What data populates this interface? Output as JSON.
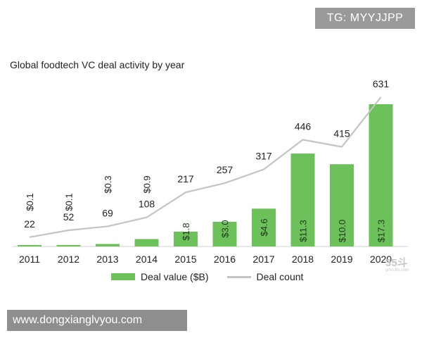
{
  "watermark_top": "TG: MYYJJPP",
  "watermark_bottom": "www.dongxianglvyou.com",
  "corner_logo": "35斗",
  "corner_logo_sub": "yrno.fm.com",
  "chart_data": {
    "type": "bar",
    "title": "Global foodtech VC deal activity by year",
    "categories": [
      "2011",
      "2012",
      "2013",
      "2014",
      "2015",
      "2016",
      "2017",
      "2018",
      "2019",
      "2020"
    ],
    "series": [
      {
        "name": "Deal value ($B)",
        "type": "bar",
        "values": [
          0.1,
          0.1,
          0.3,
          0.9,
          1.8,
          3.0,
          4.6,
          11.3,
          10.0,
          17.3
        ],
        "labels": [
          "$0.1",
          "$0.1",
          "$0.3",
          "$0.9",
          "$1.8",
          "$3.0",
          "$4.6",
          "$11.3",
          "$10.0",
          "$17.3"
        ],
        "color": "#6cc15a"
      },
      {
        "name": "Deal count",
        "type": "line",
        "values": [
          22,
          52,
          69,
          108,
          217,
          257,
          317,
          446,
          415,
          631
        ],
        "labels": [
          "22",
          "52",
          "69",
          "108",
          "217",
          "257",
          "317",
          "446",
          "415",
          "631"
        ],
        "color": "#c4c4c4"
      }
    ],
    "legend_position": "bottom",
    "grid": false
  }
}
